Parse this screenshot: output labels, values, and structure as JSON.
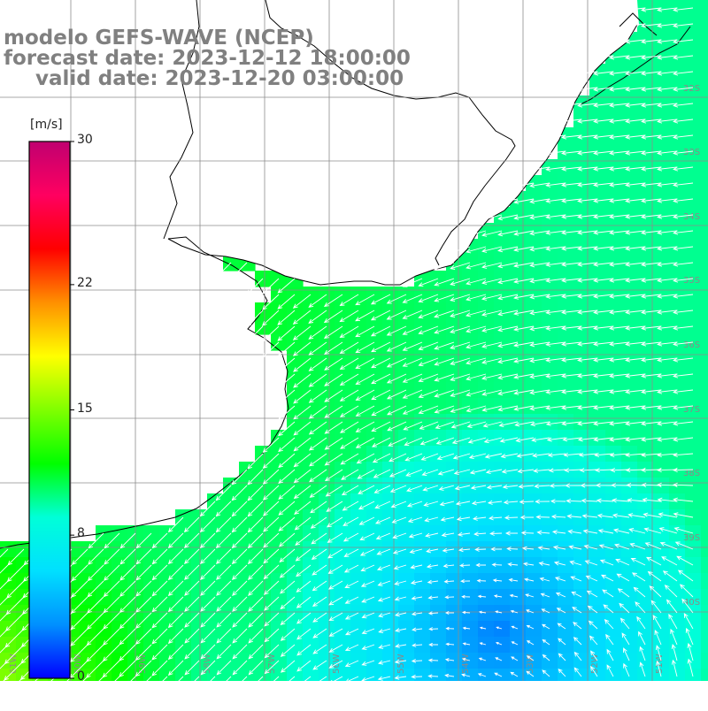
{
  "titles": {
    "line1": "modelo GEFS-WAVE (NCEP)",
    "line2": "forecast date: 2023-12-12 18:00:00",
    "line3": "valid date: 2023-12-20 03:00:00"
  },
  "colorbar": {
    "unit": "[m/s]",
    "min": 0,
    "max": 30,
    "ticks": [
      {
        "value": 30,
        "label": "30"
      },
      {
        "value": 22,
        "label": "22"
      },
      {
        "value": 15,
        "label": "15"
      },
      {
        "value": 8,
        "label": "8"
      },
      {
        "value": 0,
        "label": "0"
      }
    ],
    "colors": [
      "#0000ff",
      "#0090ff",
      "#00e0ff",
      "#00ffd8",
      "#00ff00",
      "#80ff00",
      "#ffff00",
      "#ff9000",
      "#ff0000",
      "#ff0060",
      "#c00070"
    ]
  },
  "grid": {
    "lat_labels": [
      "32S",
      "33S",
      "34S",
      "35S",
      "36S",
      "37S",
      "38S",
      "39S",
      "40S"
    ],
    "lon_labels": [
      "61W",
      "60W",
      "59W",
      "58W",
      "57W",
      "56W",
      "55W",
      "54W",
      "53W",
      "52W",
      "51W"
    ]
  },
  "colors": {
    "land": "#ffffff",
    "coast": "#000000",
    "grid": "#8c8c8c",
    "arrow": "#ffffff",
    "title": "#808080"
  }
}
